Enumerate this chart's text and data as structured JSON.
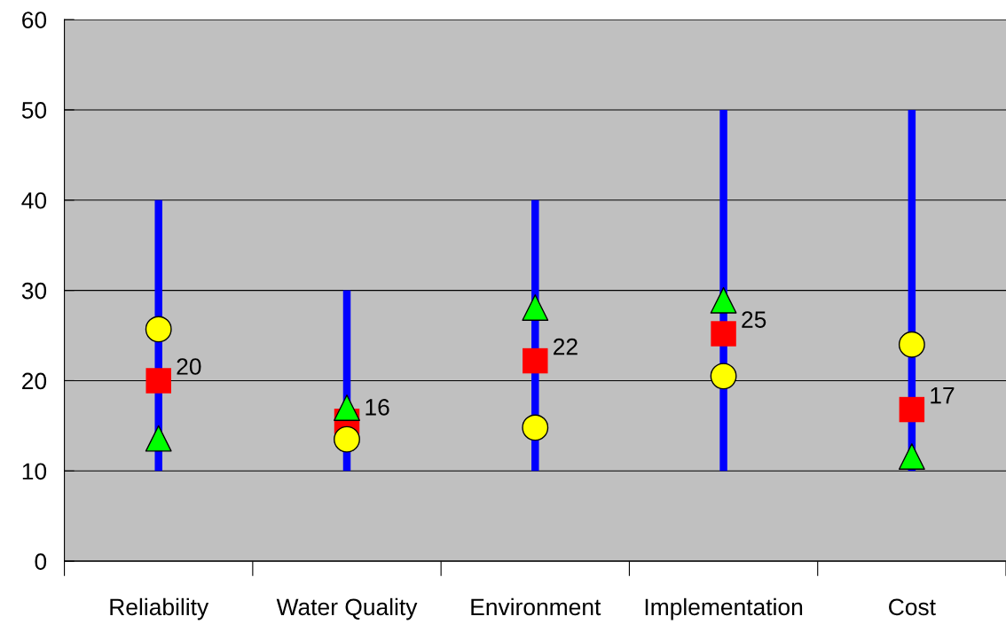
{
  "chart_data": {
    "type": "scatter",
    "categories": [
      "Reliability",
      "Water Quality",
      "Environment",
      "Implementation",
      "Cost"
    ],
    "series": [
      {
        "type": "bar",
        "color": "#0000ff",
        "base": [
          10,
          10,
          10,
          10,
          10
        ],
        "values": [
          30,
          20,
          30,
          40,
          40
        ]
      },
      {
        "marker": "square",
        "color": "#ff0000",
        "values": [
          20,
          15.5,
          22.2,
          25.2,
          16.8
        ],
        "value_labels": [
          "20",
          "16",
          "22",
          "25",
          "17"
        ]
      },
      {
        "marker": "circle",
        "color": "#ffff00",
        "values": [
          25.7,
          13.5,
          14.8,
          20.5,
          24.0
        ]
      },
      {
        "marker": "triangle",
        "color": "#00ff00",
        "values": [
          13.6,
          17.0,
          28.1,
          28.9,
          11.6
        ]
      }
    ],
    "ylim": [
      0,
      60
    ],
    "yticks": [
      0,
      10,
      20,
      30,
      40,
      50,
      60
    ],
    "grid": "y",
    "legend": false
  }
}
